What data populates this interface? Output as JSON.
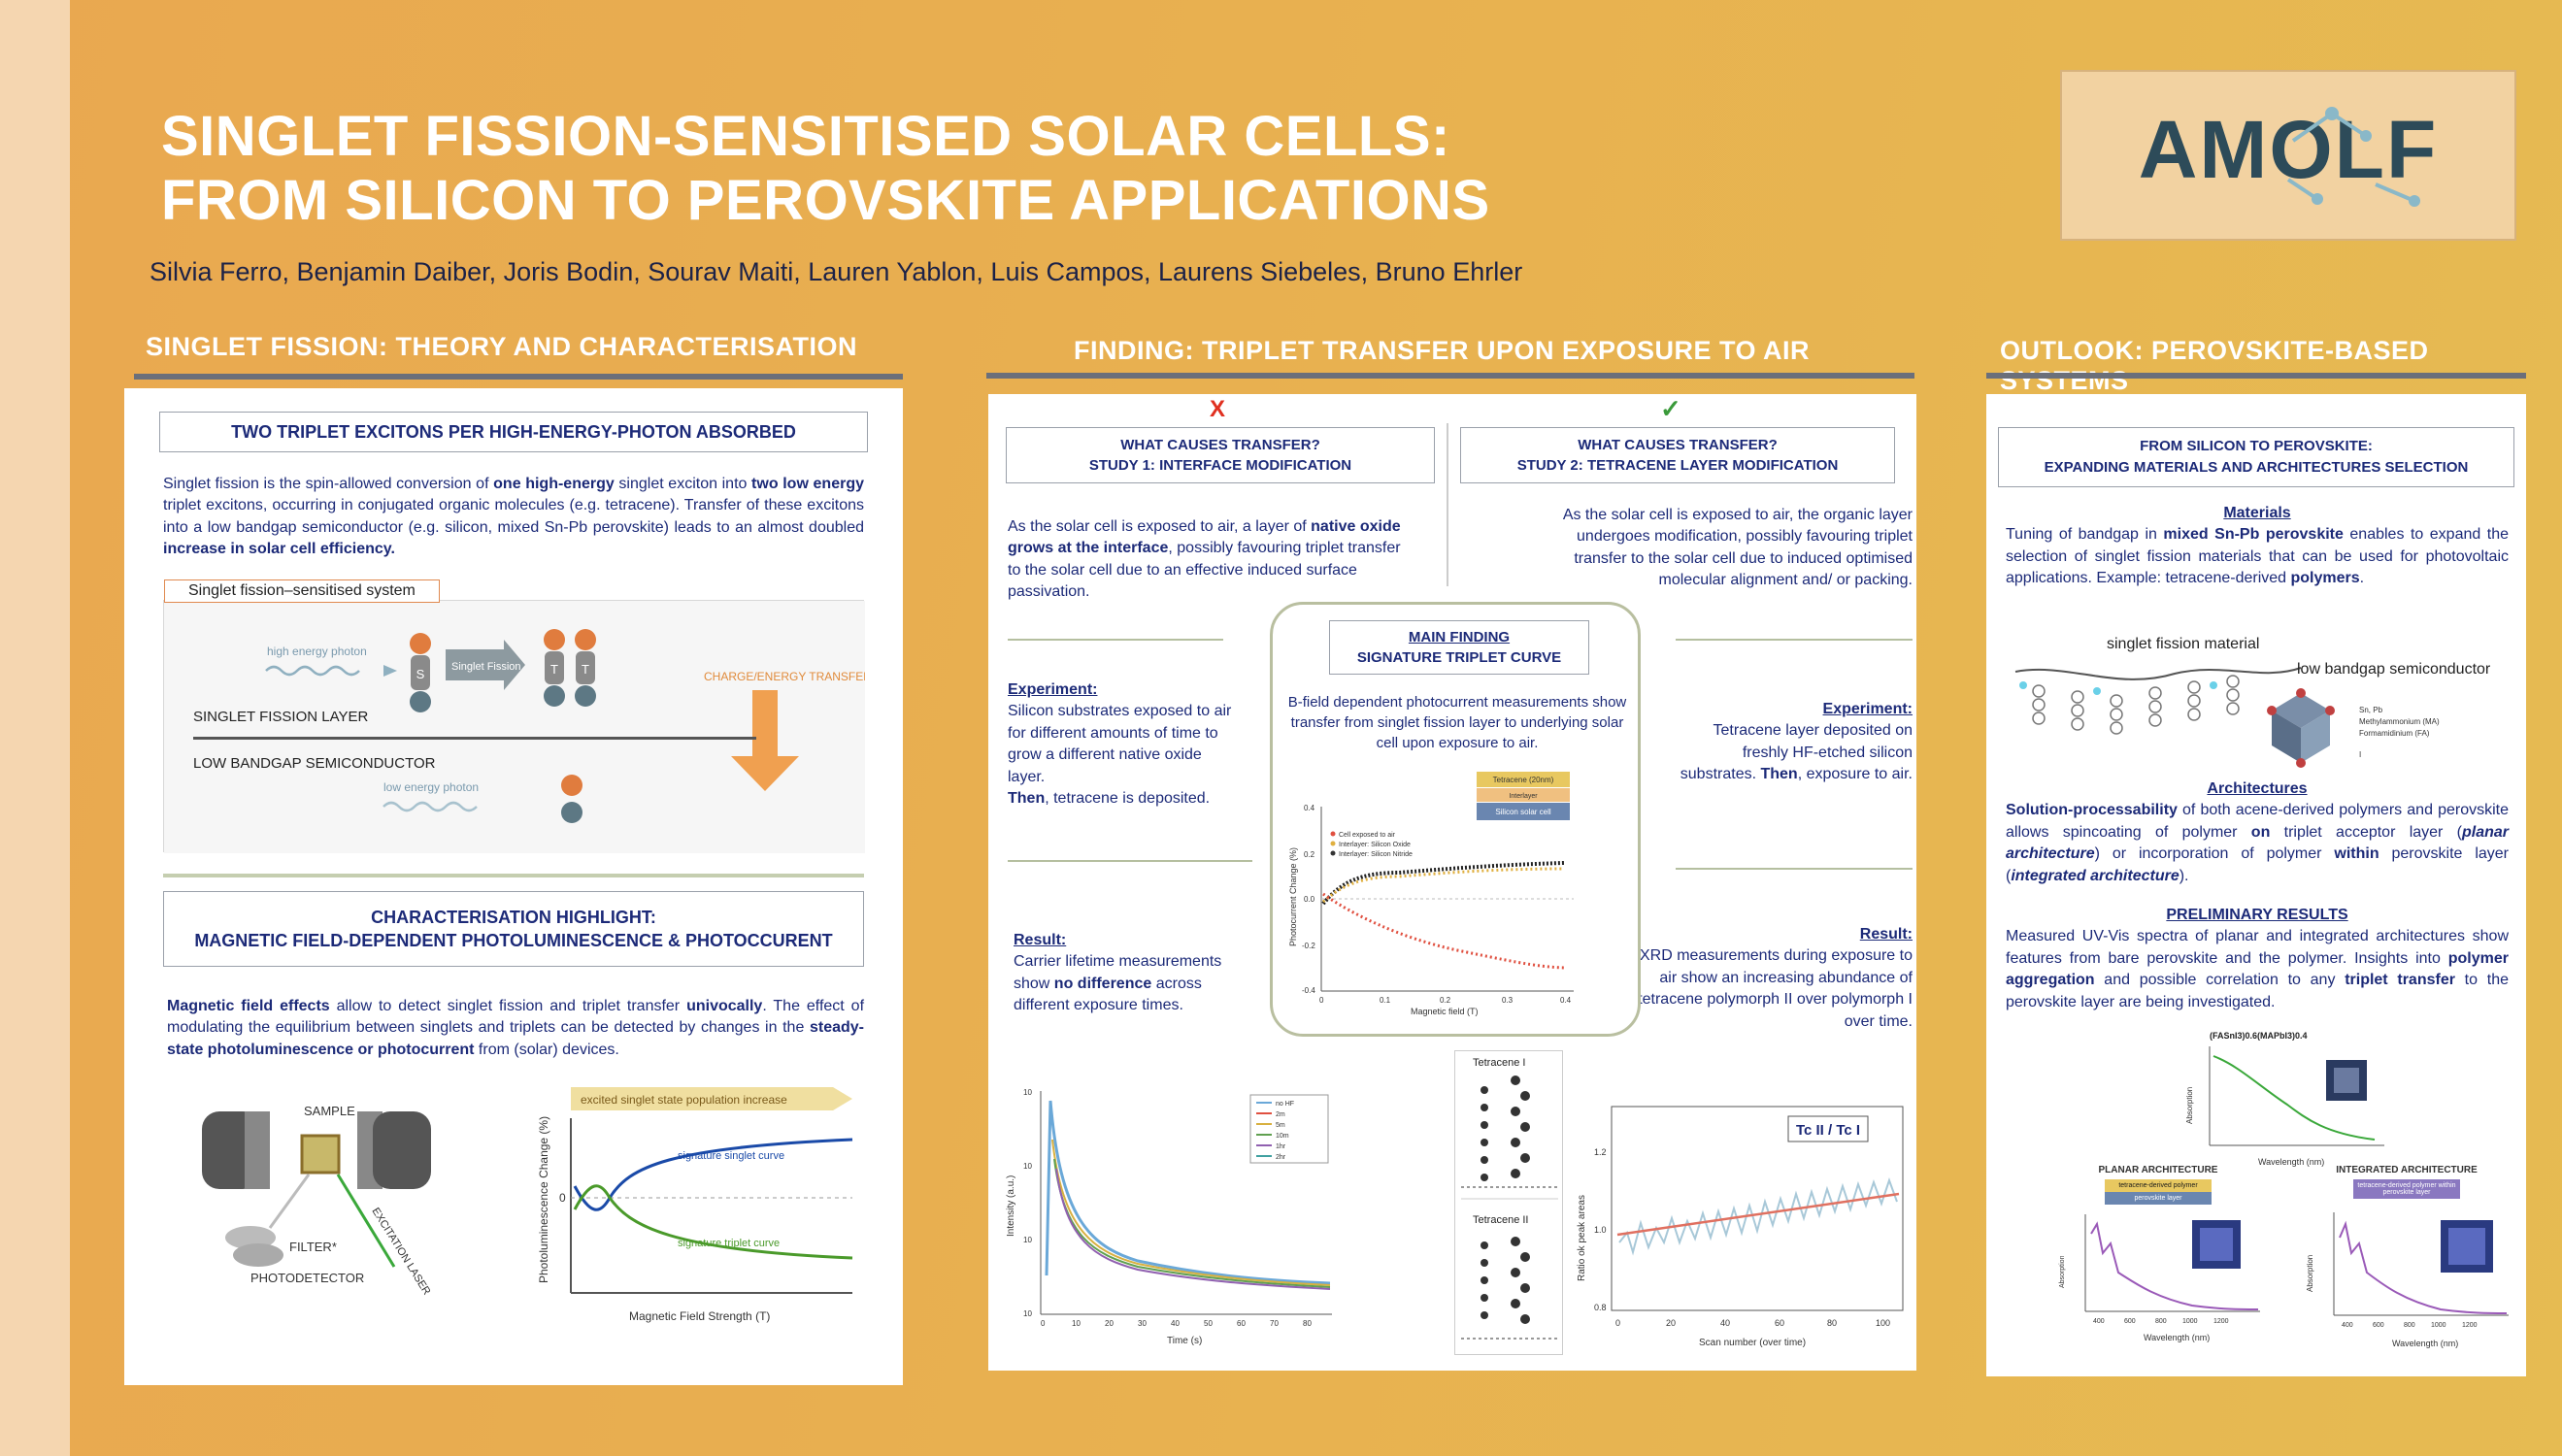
{
  "title": {
    "line1": "SINGLET FISSION-SENSITISED SOLAR CELLS:",
    "line2": "FROM SILICON TO PEROVSKITE APPLICATIONS"
  },
  "authors": "Silvia Ferro, Benjamin Daiber, Joris Bodin, Sourav Maiti, Lauren Yablon, Luis Campos, Laurens Siebeles, Bruno Ehrler",
  "logo": "AMOLF",
  "left": {
    "heading": "SINGLET FISSION: THEORY AND  CHARACTERISATION",
    "box1_title": "TWO TRIPLET EXCITONS PER HIGH-ENERGY-PHOTON ABSORBED",
    "intro_parts": [
      "Singlet fission is the spin-allowed conversion of ",
      "one high-energy",
      " singlet exciton into ",
      "two low energy",
      " triplet excitons, occurring in conjugated organic molecules (e.g. tetracene). Transfer of these excitons into a low bandgap semiconductor (e.g. silicon, mixed Sn-Pb perovskite) leads to an almost doubled ",
      "increase in solar cell efficiency."
    ],
    "diagram": {
      "caption": "Singlet fission–sensitised system",
      "high_photon": "high energy photon",
      "s_label": "S",
      "sf_label": "Singlet Fission",
      "t_label": "T",
      "charge_transfer": "CHARGE/ENERGY TRANSFER",
      "sf_layer": "SINGLET FISSION LAYER",
      "low_bandgap": "LOW BANDGAP SEMICONDUCTOR",
      "low_photon": "low energy photon"
    },
    "box2_title_1": "CHARACTERISATION HIGHLIGHT:",
    "box2_title_2": "MAGNETIC FIELD-DEPENDENT PHOTOLUMINESCENCE & PHOTOCCURENT",
    "char_parts": [
      "Magnetic field effects",
      " allow to detect singlet fission and triplet transfer ",
      "univocally",
      ". The effect of modulating the equilibrium between singlets and triplets can be detected by changes in the ",
      "steady-state photoluminescence or photocurrent",
      " from (solar) devices."
    ],
    "setup": {
      "sample": "SAMPLE",
      "filter": "FILTER*",
      "photodetector": "PHOTODETECTOR",
      "laser": "EXCITATION LASER"
    },
    "mfe_plot": {
      "banner": "excited singlet state population increase",
      "ylabel": "Photoluminescence Change (%)",
      "xlabel": "Magnetic Field Strength (T)",
      "zero": "0",
      "singlet": "signature singlet curve",
      "triplet": "signature triplet curve"
    }
  },
  "middle": {
    "heading": "FINDING: TRIPLET TRANSFER UPON EXPOSURE TO AIR",
    "cross": "X",
    "check": "✓",
    "study1_title_1": "WHAT CAUSES TRANSFER?",
    "study1_title_2": "STUDY 1: INTERFACE MODIFICATION",
    "study2_title_1": "WHAT CAUSES TRANSFER?",
    "study2_title_2": "STUDY 2: TETRACENE LAYER MODIFICATION",
    "s1_text_parts": [
      "As the solar cell is exposed to air, a layer of ",
      "native oxide grows at the interface",
      ", possibly favouring triplet transfer to the solar cell due to an effective induced surface passivation."
    ],
    "s2_text": "As the solar cell is exposed to air, the organic layer undergoes modification, possibly favouring triplet transfer to the solar cell due to induced optimised  molecular alignment and/ or packing.",
    "exp1_label": "Experiment:",
    "exp1_text": "Silicon substrates exposed to air for different amounts of time to grow a different native oxide layer.",
    "exp1_then": "Then",
    "exp1_then_text": ", tetracene is deposited.",
    "exp2_label": "Experiment:",
    "exp2_text": "Tetracene layer deposited on freshly HF-etched silicon substrates. ",
    "exp2_then": "Then",
    "exp2_then_text": ", exposure to air.",
    "res1_label": "Result:",
    "res1_parts": [
      "Carrier lifetime measurements show ",
      "no difference",
      " across different exposure times."
    ],
    "res2_label": "Result:",
    "res2_text": "XRD measurements during exposure to air show an increasing abundance of tetracene polymorph II over polymorph I over time.",
    "main_title_1": "MAIN FINDING",
    "main_title_2": "SIGNATURE TRIPLET CURVE",
    "main_text": "B-field dependent photocurrent measurements show transfer from singlet fission layer to underlying solar cell  upon exposure to air.",
    "stack": [
      "Tetracene (20nm)",
      "Interlayer",
      "Silicon solar cell"
    ],
    "pc_plot": {
      "ylabel": "Photocurrent Change (%)",
      "xlabel": "Magnetic field (T)",
      "legend": [
        "Cell exposed to air",
        "Interlayer: Silicon Oxide",
        "Interlayer: Silicon Nitride"
      ],
      "xticks": [
        "0",
        "0.1",
        "0.2",
        "0.3",
        "0.4"
      ],
      "yticks": [
        "0.4",
        "0.2",
        "0.0",
        "-0.2",
        "-0.4"
      ]
    },
    "decay_plot": {
      "ylabel": "Intensity (a.u.)",
      "xlabel": "Time (s)",
      "xticks": [
        "0",
        "10",
        "20",
        "30",
        "40",
        "50",
        "60",
        "70",
        "80"
      ],
      "yticks": [
        "10",
        "10",
        "10",
        "10"
      ],
      "legend": [
        "no HF",
        "2m",
        "5m",
        "10m",
        "1hr",
        "2hr"
      ]
    },
    "xrd": {
      "tc1": "Tetracene I",
      "tc2": "Tetracene II",
      "ratio": "Tc II / Tc I",
      "ylabel": "Ratio ok peak areas",
      "xlabel": "Scan number (over time)",
      "xticks": [
        "0",
        "20",
        "40",
        "60",
        "80",
        "100"
      ],
      "yticks": [
        "1.2",
        "1.0",
        "0.8"
      ]
    }
  },
  "right": {
    "heading": "OUTLOOK: PEROVSKITE-BASED SYSTEMS",
    "box_title_1": "FROM SILICON TO PEROVSKITE:",
    "box_title_2": "EXPANDING MATERIALS AND ARCHITECTURES SELECTION",
    "materials_label": "Materials",
    "materials_parts": [
      "Tuning of bandgap in ",
      "mixed Sn-Pb perovskite",
      " enables to expand the selection of singlet fission materials that can be used for photovoltaic applications. Example: tetracene-derived ",
      "polymers",
      "."
    ],
    "sf_material": "singlet fission material",
    "lbs": "low bandgap semiconductor",
    "legend_lines": [
      "Sn, Pb",
      "Methylammonium (MA)",
      "Formamidinium (FA)",
      "I"
    ],
    "arch_label": "Architectures",
    "arch_parts": [
      "Solution-processability",
      " of both acene-derived polymers and perovskite allows spincoating of polymer ",
      "on",
      " triplet acceptor layer (",
      "planar architecture",
      ") or incorporation of polymer ",
      "within",
      " perovskite layer (",
      "integrated architecture",
      ")."
    ],
    "prelim_label": "PRELIMINARY RESULTS",
    "prelim_parts": [
      "Measured UV-Vis spectra of planar and integrated architectures show features from bare perovskite and the polymer. Insights into ",
      "polymer aggregation",
      " and possible correlation to any ",
      "triplet transfer",
      " to the perovskite layer are being investigated."
    ],
    "abs_plot": {
      "title": "(FASnI3)0.6(MAPbI3)0.4",
      "ylabel": "Absorption",
      "xlabel": "Wavelength (nm)"
    },
    "planar": {
      "title": "PLANAR ARCHITECTURE",
      "top": "tetracene-derived polymer",
      "bottom": "perovskite layer",
      "ylabel": "Absorption",
      "xlabel": "Wavelength (nm)",
      "xticks": [
        "400",
        "600",
        "800",
        "1000",
        "1200"
      ]
    },
    "integrated": {
      "title": "INTEGRATED ARCHITECTURE",
      "layer": "tetracene-derived polymer within perovskite layer",
      "ylabel": "Absorption",
      "xlabel": "Wavelength (nm)",
      "xticks": [
        "400",
        "600",
        "800",
        "1000",
        "1200"
      ]
    }
  }
}
